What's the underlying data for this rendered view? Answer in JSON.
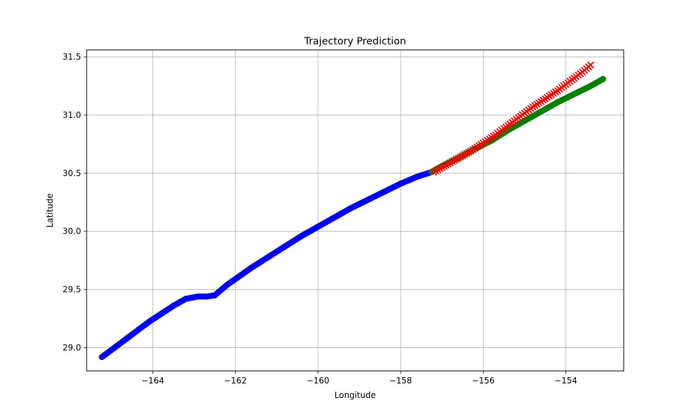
{
  "chart_data": {
    "type": "scatter",
    "title": "Trajectory Prediction",
    "xlabel": "Longitude",
    "ylabel": "Latitude",
    "xlim": [
      -165.6,
      -152.6
    ],
    "ylim": [
      28.8,
      31.56
    ],
    "xticks": [
      -164,
      -162,
      -160,
      -158,
      -156,
      -154
    ],
    "xtick_labels": [
      "−164",
      "−162",
      "−160",
      "−158",
      "−156",
      "−154"
    ],
    "yticks": [
      29.0,
      29.5,
      30.0,
      30.5,
      31.0,
      31.5
    ],
    "ytick_labels": [
      "29.0",
      "29.5",
      "30.0",
      "30.5",
      "31.0",
      "31.5"
    ],
    "grid": true,
    "series": [
      {
        "marker": "circle",
        "color": "#0000ff",
        "x": [
          -165.23,
          -165.0,
          -164.7,
          -164.4,
          -164.1,
          -163.8,
          -163.5,
          -163.2,
          -162.9,
          -162.7,
          -162.5,
          -162.4,
          -162.2,
          -162.0,
          -161.6,
          -161.2,
          -160.8,
          -160.4,
          -160.0,
          -159.6,
          -159.2,
          -158.8,
          -158.4,
          -158.0,
          -157.6,
          -157.25
        ],
        "y": [
          28.92,
          28.98,
          29.06,
          29.14,
          29.22,
          29.29,
          29.36,
          29.42,
          29.44,
          29.44,
          29.45,
          29.48,
          29.54,
          29.59,
          29.69,
          29.78,
          29.87,
          29.96,
          30.04,
          30.12,
          30.2,
          30.27,
          30.34,
          30.41,
          30.47,
          30.51
        ]
      },
      {
        "marker": "circle",
        "color": "#008000",
        "x": [
          -157.25,
          -157.0,
          -156.6,
          -156.2,
          -155.8,
          -155.4,
          -155.0,
          -154.6,
          -154.2,
          -153.8,
          -153.4,
          -153.1
        ],
        "y": [
          30.51,
          30.56,
          30.63,
          30.71,
          30.78,
          30.87,
          30.95,
          31.03,
          31.11,
          31.18,
          31.25,
          31.31
        ]
      },
      {
        "marker": "x",
        "color": "#ff0000",
        "x": [
          -157.2,
          -156.9,
          -156.6,
          -156.3,
          -156.0,
          -155.7,
          -155.4,
          -155.1,
          -154.8,
          -154.5,
          -154.2,
          -153.9,
          -153.6,
          -153.4
        ],
        "y": [
          30.51,
          30.57,
          30.63,
          30.69,
          30.76,
          30.83,
          30.91,
          30.99,
          31.07,
          31.14,
          31.21,
          31.29,
          31.37,
          31.43
        ]
      }
    ]
  }
}
